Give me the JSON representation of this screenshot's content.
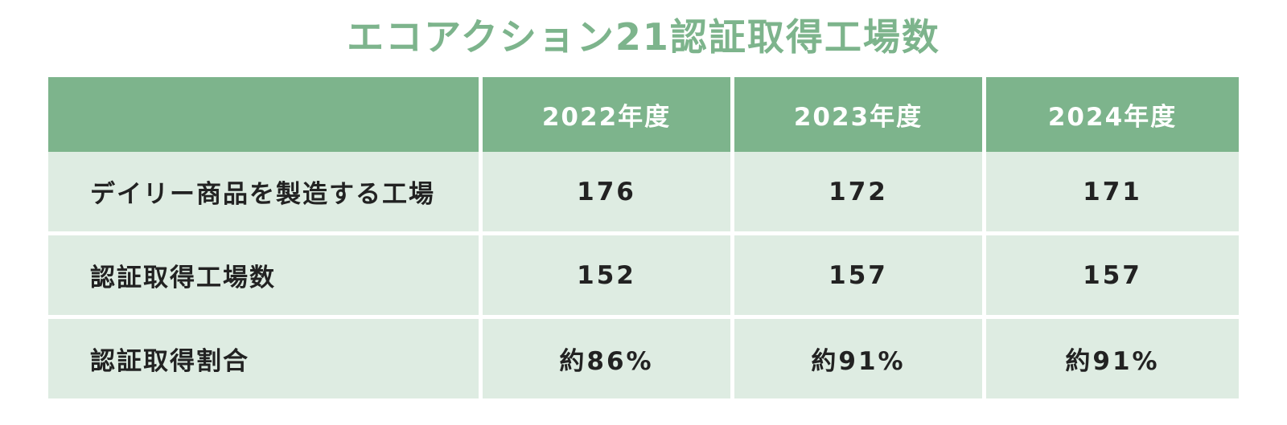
{
  "title": "エコアクション21認証取得工場数",
  "table": {
    "headers": [
      "",
      "2022年度",
      "2023年度",
      "2024年度"
    ],
    "rows": [
      {
        "label": "デイリー商品を製造する工場",
        "values": [
          "176",
          "172",
          "171"
        ]
      },
      {
        "label": "認証取得工場数",
        "values": [
          "152",
          "157",
          "157"
        ]
      },
      {
        "label": "認証取得割合",
        "values": [
          "約86%",
          "約91%",
          "約91%"
        ]
      }
    ]
  },
  "colors": {
    "title": "#7db48c",
    "header_bg": "#7db48c",
    "cell_bg": "#deece2",
    "text": "#222222"
  }
}
